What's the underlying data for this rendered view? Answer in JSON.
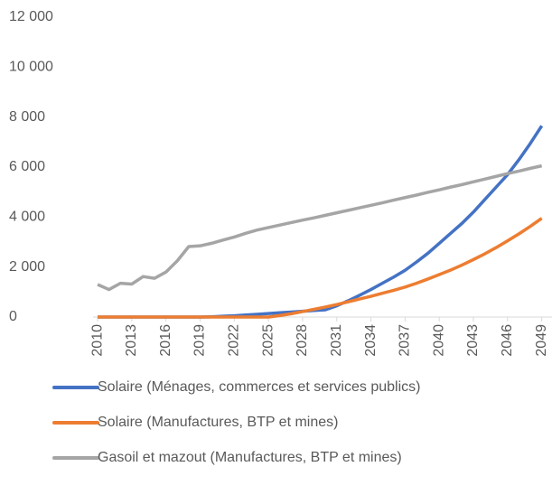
{
  "chart_data": {
    "type": "line",
    "x": [
      2010,
      2011,
      2012,
      2013,
      2014,
      2015,
      2016,
      2017,
      2018,
      2019,
      2020,
      2021,
      2022,
      2023,
      2024,
      2025,
      2026,
      2027,
      2028,
      2029,
      2030,
      2031,
      2032,
      2033,
      2034,
      2035,
      2036,
      2037,
      2038,
      2039,
      2040,
      2041,
      2042,
      2043,
      2044,
      2045,
      2046,
      2047,
      2048,
      2049
    ],
    "series": [
      {
        "name": "Solaire (Ménages, commerces et services publics)",
        "color": "#4472c4",
        "values": [
          0,
          0,
          0,
          0,
          0,
          0,
          0,
          0,
          0,
          0,
          10,
          30,
          50,
          80,
          110,
          140,
          170,
          200,
          230,
          260,
          290,
          450,
          650,
          870,
          1100,
          1350,
          1600,
          1870,
          2200,
          2550,
          2950,
          3350,
          3750,
          4200,
          4700,
          5200,
          5700,
          6300,
          6950,
          7650
        ]
      },
      {
        "name": "Solaire (Manufactures, BTP et mines)",
        "color": "#ed7d31",
        "values": [
          0,
          0,
          0,
          0,
          0,
          0,
          0,
          0,
          0,
          0,
          0,
          0,
          0,
          0,
          0,
          0,
          60,
          130,
          220,
          310,
          400,
          500,
          610,
          720,
          830,
          950,
          1070,
          1200,
          1350,
          1520,
          1700,
          1880,
          2080,
          2300,
          2530,
          2780,
          3050,
          3330,
          3630,
          3950
        ]
      },
      {
        "name": "Gasoil et mazout (Manufactures, BTP et mines)",
        "color": "#a5a5a5",
        "values": [
          1300,
          1100,
          1350,
          1320,
          1620,
          1550,
          1800,
          2250,
          2820,
          2850,
          2950,
          3080,
          3200,
          3350,
          3480,
          3580,
          3680,
          3780,
          3880,
          3970,
          4070,
          4170,
          4270,
          4370,
          4470,
          4570,
          4680,
          4780,
          4880,
          4990,
          5090,
          5200,
          5300,
          5410,
          5520,
          5630,
          5740,
          5840,
          5950,
          6050
        ]
      }
    ],
    "xlim": [
      2009.6,
      2049.9
    ],
    "xticks": [
      2010,
      2013,
      2016,
      2019,
      2022,
      2025,
      2028,
      2031,
      2034,
      2037,
      2040,
      2043,
      2046,
      2049
    ],
    "ylim": [
      0,
      12000
    ],
    "yticks": [
      0,
      {
        "value": 2000,
        "label": "2 000"
      },
      {
        "value": 4000,
        "label": "4 000"
      },
      {
        "value": 6000,
        "label": "6 000"
      },
      {
        "value": 8000,
        "label": "8 000"
      },
      {
        "value": 10000,
        "label": "10 000"
      },
      {
        "value": 12000,
        "label": "12 000"
      }
    ],
    "grid": false,
    "legend": "bottom"
  }
}
